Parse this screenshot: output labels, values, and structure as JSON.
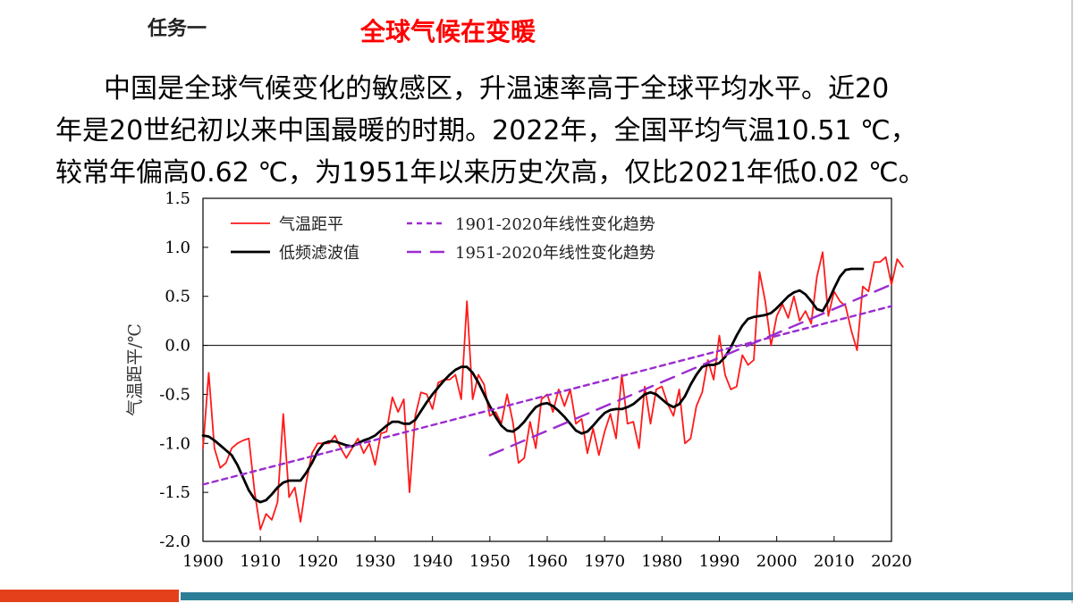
{
  "header": {
    "task_label": "任务一",
    "title": "全球气候在变暖"
  },
  "paragraph": {
    "lines": [
      "中国是全球气候变化的敏感区，升温速率高于全球平均水平。近20",
      "年是20世纪初以来中国最暖的时期。2022年，全国平均气温10.51 ℃，",
      "较常年偏高0.62 ℃，为1951年以来历史次高，仅比2021年低0.02 ℃。"
    ]
  },
  "colors": {
    "annual": "#ff1a1a",
    "smooth": "#000000",
    "trend": "#9b2ccf",
    "bar_left": "#e3401b",
    "bar_right": "#2b7e96"
  },
  "chart_data": {
    "type": "line",
    "xlabel": "",
    "ylabel": "气温距平/℃",
    "xlim": [
      1900,
      2020
    ],
    "ylim": [
      -2.0,
      1.5
    ],
    "x_ticks": [
      1900,
      1910,
      1920,
      1930,
      1940,
      1950,
      1960,
      1970,
      1980,
      1990,
      2000,
      2010,
      2020
    ],
    "y_ticks": [
      -2.0,
      -1.5,
      -1.0,
      -0.5,
      0.0,
      0.5,
      1.0,
      1.5
    ],
    "y_tick_labels": [
      "-2.0",
      "-1.5",
      "-1.0",
      "-0.5",
      "0.0",
      "0.5",
      "1.0",
      "1.5"
    ],
    "zero_line": true,
    "legend": {
      "placement": "top",
      "entries": [
        "气温距平",
        "低频滤波值",
        "1901-2020年线性变化趋势",
        "1951-2020年线性变化趋势"
      ]
    },
    "series": [
      {
        "name": "气温距平",
        "style": "solid-thin",
        "x_start": 1900,
        "values": [
          -1.05,
          -0.28,
          -1.05,
          -1.25,
          -1.2,
          -1.05,
          -1.0,
          -0.97,
          -0.95,
          -1.5,
          -1.88,
          -1.72,
          -1.78,
          -1.6,
          -0.7,
          -1.55,
          -1.45,
          -1.8,
          -1.4,
          -1.1,
          -1.0,
          -1.0,
          -1.0,
          -0.92,
          -1.05,
          -1.15,
          -1.05,
          -0.95,
          -1.1,
          -1.0,
          -1.22,
          -0.9,
          -0.88,
          -0.53,
          -0.68,
          -0.55,
          -1.5,
          -0.72,
          -0.48,
          -0.5,
          -0.65,
          -0.38,
          -0.35,
          -0.35,
          -0.3,
          -0.55,
          0.45,
          -0.55,
          -0.3,
          -0.4,
          -0.72,
          -0.68,
          -0.8,
          -0.5,
          -0.78,
          -1.2,
          -1.15,
          -0.78,
          -1.05,
          -0.55,
          -0.5,
          -0.68,
          -0.45,
          -0.62,
          -0.45,
          -0.8,
          -0.75,
          -1.1,
          -0.85,
          -1.12,
          -0.88,
          -0.7,
          -0.95,
          -0.3,
          -0.8,
          -0.78,
          -1.05,
          -0.42,
          -0.8,
          -0.45,
          -0.42,
          -0.6,
          -0.72,
          -0.45,
          -1.0,
          -0.95,
          -0.62,
          -0.48,
          -0.15,
          -0.35,
          0.1,
          -0.3,
          -0.45,
          -0.42,
          -0.1,
          -0.2,
          -0.15,
          0.75,
          0.45,
          0.0,
          0.3,
          0.42,
          0.28,
          0.5,
          0.25,
          0.35,
          0.22,
          0.7,
          0.95,
          0.3,
          0.55,
          0.45,
          0.4,
          0.15,
          -0.05,
          0.6,
          0.55,
          0.85,
          0.85,
          0.9,
          0.62,
          0.88,
          0.8
        ]
      },
      {
        "name": "低频滤波值",
        "style": "solid-thick",
        "x_start": 1900,
        "values": [
          -0.92,
          -0.93,
          -0.97,
          -1.02,
          -1.07,
          -1.12,
          -1.22,
          -1.35,
          -1.48,
          -1.57,
          -1.6,
          -1.58,
          -1.52,
          -1.45,
          -1.4,
          -1.38,
          -1.38,
          -1.38,
          -1.3,
          -1.2,
          -1.08,
          -1.0,
          -0.98,
          -0.98,
          -1.0,
          -1.02,
          -1.03,
          -1.0,
          -0.97,
          -0.95,
          -0.92,
          -0.87,
          -0.82,
          -0.78,
          -0.78,
          -0.8,
          -0.8,
          -0.76,
          -0.67,
          -0.58,
          -0.5,
          -0.43,
          -0.36,
          -0.3,
          -0.25,
          -0.22,
          -0.22,
          -0.28,
          -0.38,
          -0.5,
          -0.62,
          -0.73,
          -0.82,
          -0.87,
          -0.88,
          -0.84,
          -0.78,
          -0.7,
          -0.63,
          -0.6,
          -0.59,
          -0.62,
          -0.67,
          -0.73,
          -0.8,
          -0.87,
          -0.9,
          -0.88,
          -0.82,
          -0.75,
          -0.69,
          -0.66,
          -0.65,
          -0.65,
          -0.63,
          -0.6,
          -0.55,
          -0.5,
          -0.48,
          -0.5,
          -0.55,
          -0.6,
          -0.63,
          -0.6,
          -0.52,
          -0.4,
          -0.3,
          -0.22,
          -0.2,
          -0.2,
          -0.18,
          -0.12,
          -0.02,
          0.1,
          0.2,
          0.27,
          0.29,
          0.3,
          0.31,
          0.33,
          0.38,
          0.44,
          0.5,
          0.54,
          0.56,
          0.52,
          0.45,
          0.37,
          0.35,
          0.45,
          0.58,
          0.7,
          0.77,
          0.78,
          0.78,
          0.78
        ]
      },
      {
        "name": "1901-2020年线性变化趋势",
        "style": "dashed-short",
        "x": [
          1900,
          2020
        ],
        "values": [
          -1.42,
          0.4
        ]
      },
      {
        "name": "1951-2020年线性变化趋势",
        "style": "dashed-long",
        "x": [
          1950,
          2020
        ],
        "values": [
          -1.12,
          0.62
        ]
      }
    ]
  }
}
